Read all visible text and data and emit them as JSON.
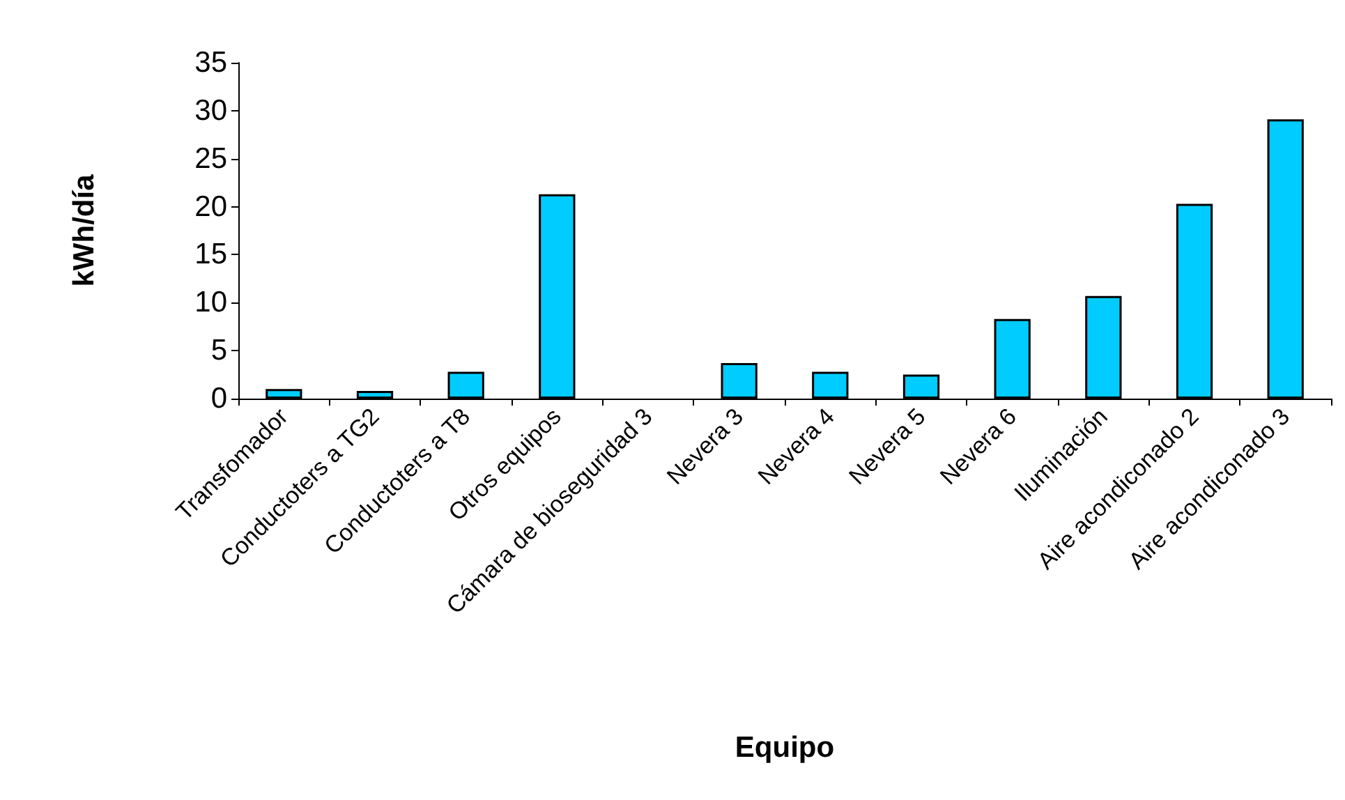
{
  "chart_data": {
    "type": "bar",
    "xlabel": "Equipo",
    "ylabel": "kWh/día",
    "categories": [
      "Transfomador",
      "Conductoters a TG2",
      "Conductoters a T8",
      "Otros equipos",
      "Cámara de bioseguridad 3",
      "Nevera 3",
      "Nevera 4",
      "Nevera 5",
      "Nevera 6",
      "Iluminación",
      "Aire acondiconado 2",
      "Aire acondiconado 3"
    ],
    "values": [
      1.0,
      0.8,
      2.8,
      21.3,
      0,
      3.7,
      2.8,
      2.5,
      8.3,
      10.7,
      20.3,
      29.1
    ],
    "color": "#00ccff",
    "ylim": [
      0,
      35
    ],
    "yticks": [
      0,
      5,
      10,
      15,
      20,
      25,
      30,
      35
    ],
    "grid": false
  }
}
